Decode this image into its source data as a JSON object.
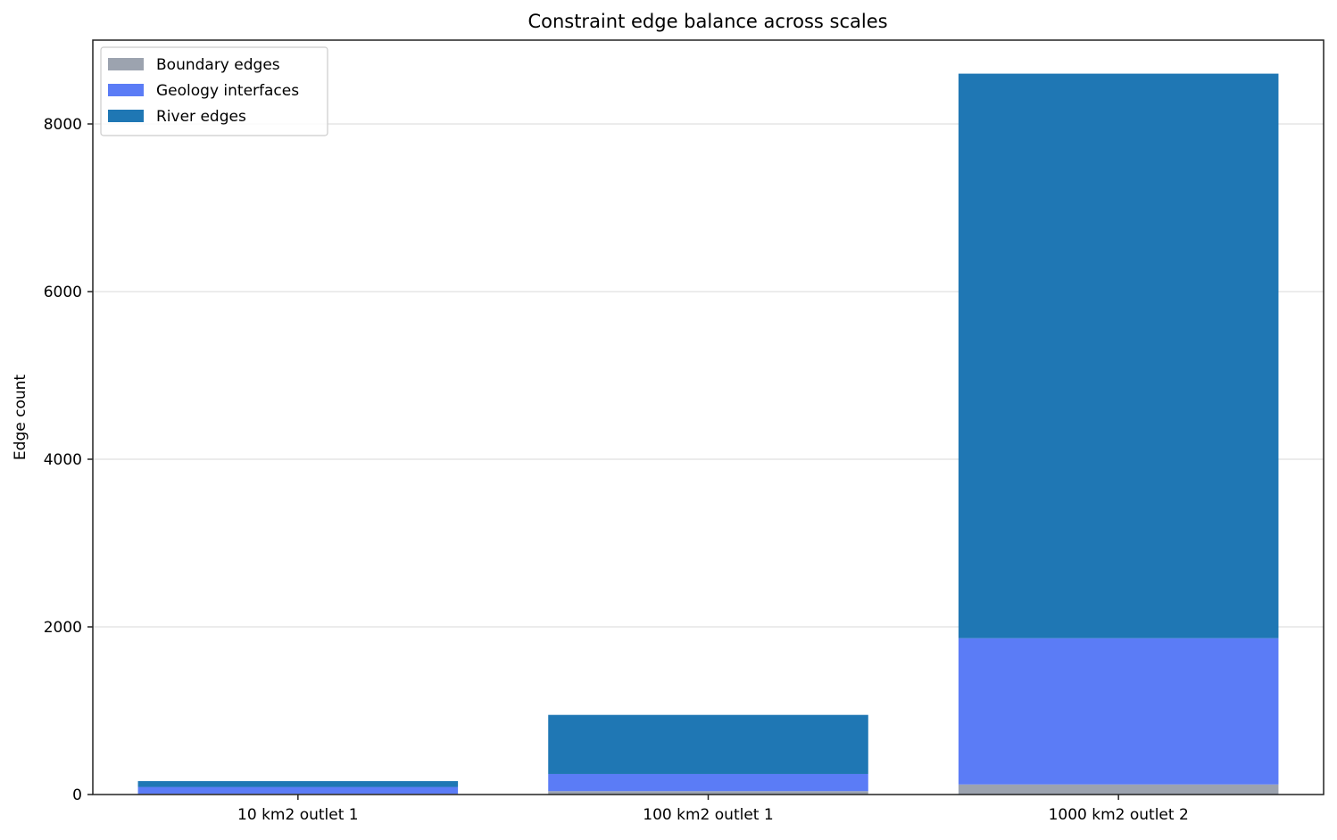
{
  "chart_data": {
    "type": "bar",
    "stacked": true,
    "title": "Constraint edge balance across scales",
    "xlabel": "",
    "ylabel": "Edge count",
    "categories": [
      "10 km2 outlet 1",
      "100 km2 outlet 1",
      "1000 km2 outlet 2"
    ],
    "series": [
      {
        "name": "Boundary edges",
        "color": "#9ca3af",
        "values": [
          10,
          40,
          120
        ]
      },
      {
        "name": "Geology interfaces",
        "color": "#5b7cf6",
        "values": [
          80,
          205,
          1745
        ]
      },
      {
        "name": "River edges",
        "color": "#1f77b4",
        "values": [
          70,
          705,
          6735
        ]
      }
    ],
    "ylim": [
      0,
      9000
    ],
    "yticks": [
      0,
      2000,
      4000,
      6000,
      8000
    ],
    "grid": "y",
    "legend_position": "top-left"
  }
}
